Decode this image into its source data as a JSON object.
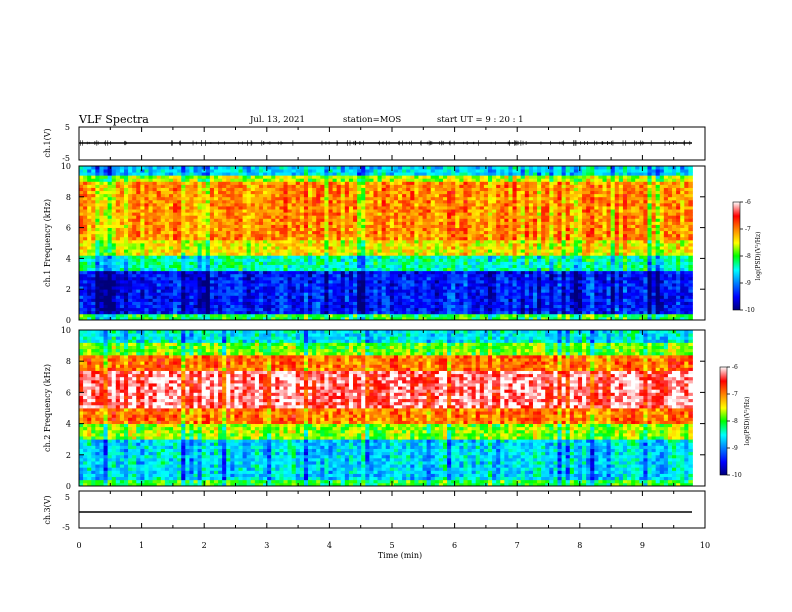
{
  "header": {
    "title": "VLF Spectra",
    "date": "Jul. 13, 2021",
    "station": "station=MOS",
    "start": "start UT = 9 : 20 : 1"
  },
  "colors": {
    "colormap": [
      "#00007a",
      "#0000ff",
      "#0080ff",
      "#00ffff",
      "#00ff00",
      "#ffff00",
      "#ff8000",
      "#ff0000",
      "#ffffff"
    ]
  },
  "chart_data": [
    {
      "type": "line",
      "panel": "ch1-waveform",
      "ylabel": "ch.1(V)",
      "ylim": [
        -5,
        5
      ],
      "yticks": [
        "5",
        "-5"
      ],
      "x_unit": "min",
      "xlim": [
        0,
        10
      ],
      "approx_level": 0.2
    },
    {
      "type": "heatmap",
      "panel": "ch1-spectrogram",
      "ylabel": "ch.1 Frequency (kHz)",
      "ylim": [
        0,
        10
      ],
      "yticks": [
        "0",
        "2",
        "4",
        "6",
        "8",
        "10"
      ],
      "xlim": [
        0,
        10
      ],
      "data_end_min": 9.8,
      "colorbar": {
        "label": "log(PSD)(V²/Hz)",
        "range": [
          -10,
          -6
        ],
        "ticks": [
          "-6",
          "-7",
          "-8",
          "-9",
          "-10"
        ]
      },
      "bands_khz": [
        {
          "from": 0,
          "to": 0.5,
          "level": -8.0
        },
        {
          "from": 0.5,
          "to": 3.2,
          "level": -9.4
        },
        {
          "from": 3.2,
          "to": 4.2,
          "level": -8.3
        },
        {
          "from": 4.2,
          "to": 5.2,
          "level": -7.4
        },
        {
          "from": 5.2,
          "to": 9.0,
          "level": -7.0
        },
        {
          "from": 9.0,
          "to": 9.5,
          "level": -7.6
        },
        {
          "from": 9.5,
          "to": 10,
          "level": -8.6
        }
      ]
    },
    {
      "type": "heatmap",
      "panel": "ch2-spectrogram",
      "ylabel": "ch.2 Frequency (kHz)",
      "ylim": [
        0,
        10
      ],
      "yticks": [
        "0",
        "2",
        "4",
        "6",
        "8",
        "10"
      ],
      "xlim": [
        0,
        10
      ],
      "data_end_min": 9.8,
      "colorbar": {
        "label": "log(PSD)(V²/Hz)",
        "range": [
          -10,
          -6
        ],
        "ticks": [
          "-6",
          "-7",
          "-8",
          "-9",
          "-10"
        ]
      },
      "bands_khz": [
        {
          "from": 0,
          "to": 0.5,
          "level": -8.0
        },
        {
          "from": 0.5,
          "to": 3.0,
          "level": -8.6
        },
        {
          "from": 3.0,
          "to": 4.0,
          "level": -7.7
        },
        {
          "from": 4.0,
          "to": 5.0,
          "level": -6.9
        },
        {
          "from": 5.0,
          "to": 7.5,
          "level": -6.2
        },
        {
          "from": 7.5,
          "to": 8.5,
          "level": -6.9
        },
        {
          "from": 8.5,
          "to": 9.3,
          "level": -7.8
        },
        {
          "from": 9.3,
          "to": 10,
          "level": -8.5
        }
      ]
    },
    {
      "type": "line",
      "panel": "ch3-waveform",
      "ylabel": "ch.3(V)",
      "ylim": [
        -5,
        5
      ],
      "yticks": [
        "5",
        "-5"
      ],
      "xlim": [
        0,
        10
      ],
      "xlabel": "Time (min)",
      "xticks": [
        "0",
        "1",
        "2",
        "3",
        "4",
        "5",
        "6",
        "7",
        "8",
        "9",
        "10"
      ],
      "approx_level": -1.0
    }
  ]
}
